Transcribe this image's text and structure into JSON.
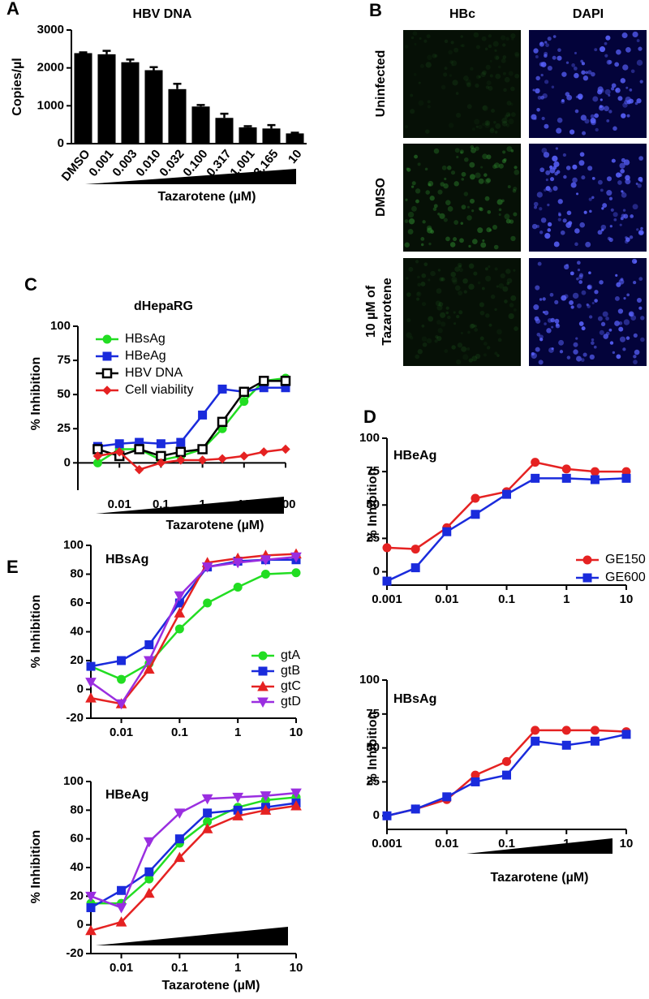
{
  "panel_b": {
    "label": "B",
    "columns": [
      "HBc",
      "DAPI"
    ],
    "rows": [
      [
        "Uninfected"
      ],
      [
        "DMSO"
      ],
      [
        "10 µM of",
        "Tazarotene"
      ]
    ]
  },
  "chart_data": [
    {
      "type": "bar",
      "panel": "A",
      "title": "HBV DNA",
      "y_label": "Copies/µl",
      "x_label": "Tazarotene (µM)",
      "categories": [
        "DMSO",
        "0.001",
        "0.003",
        "0.010",
        "0.032",
        "0.100",
        "0.317",
        "1.001",
        "3.165",
        "10"
      ],
      "values": [
        2390,
        2360,
        2150,
        1940,
        1440,
        980,
        680,
        430,
        400,
        270
      ],
      "errors": [
        20,
        90,
        70,
        80,
        140,
        40,
        110,
        30,
        90,
        20
      ],
      "color": "#000000",
      "ylim": [
        0,
        3000
      ],
      "yticks": [
        0,
        1000,
        2000,
        3000
      ]
    },
    {
      "type": "line",
      "panel": "C",
      "title": "dHepaRG",
      "y_label": "% Inhibition",
      "x_label": "Tazarotene (µM)",
      "log_x": true,
      "xaxis_crosses": 0,
      "x": [
        0.003,
        0.01,
        0.03,
        0.1,
        0.3,
        1,
        3,
        10,
        30,
        100
      ],
      "series": [
        {
          "name": "HBsAg",
          "color": "#22dd22",
          "marker": "circle",
          "values": [
            0,
            10,
            10,
            2,
            5,
            10,
            25,
            45,
            60,
            62
          ]
        },
        {
          "name": "HBeAg",
          "color": "#1a2bdc",
          "marker": "square",
          "values": [
            12,
            14,
            15,
            14,
            15,
            35,
            54,
            52,
            55,
            55
          ]
        },
        {
          "name": "HBV DNA",
          "color": "#000000",
          "marker": "open-square",
          "values": [
            10,
            5,
            10,
            5,
            8,
            10,
            30,
            52,
            60,
            60
          ]
        },
        {
          "name": "Cell viability",
          "color": "#e52222",
          "marker": "diamond",
          "values": [
            5,
            8,
            -5,
            0,
            2,
            2,
            3,
            5,
            8,
            10
          ]
        }
      ],
      "xlim": [
        0.001,
        100
      ],
      "xticks": [
        0.01,
        0.1,
        1,
        10,
        100
      ],
      "ylim": [
        -20,
        100
      ],
      "yticks": [
        0,
        25,
        50,
        75,
        100
      ]
    },
    {
      "type": "line",
      "panel": "D",
      "title": "HBeAg",
      "y_label": "% Inhibition",
      "log_x": true,
      "x": [
        0.001,
        0.003,
        0.01,
        0.03,
        0.1,
        0.3,
        1,
        3,
        10
      ],
      "series": [
        {
          "name": "GE150",
          "color": "#e52222",
          "marker": "circle",
          "values": [
            18,
            17,
            33,
            55,
            60,
            82,
            77,
            75,
            75
          ]
        },
        {
          "name": "GE600",
          "color": "#1a2bdc",
          "marker": "square",
          "values": [
            -7,
            3,
            30,
            43,
            58,
            70,
            70,
            69,
            70
          ]
        }
      ],
      "xlim": [
        0.001,
        10
      ],
      "xticks": [
        0.001,
        0.01,
        0.1,
        1,
        10
      ],
      "ylim": [
        -10,
        100
      ],
      "yticks": [
        0,
        25,
        50,
        75,
        100
      ]
    },
    {
      "type": "line",
      "title": "HBsAg",
      "y_label": "% Inhibition",
      "x_label": "Tazarotene (µM)",
      "log_x": true,
      "x": [
        0.001,
        0.003,
        0.01,
        0.03,
        0.1,
        0.3,
        1,
        3,
        10
      ],
      "series": [
        {
          "color": "#e52222",
          "marker": "circle",
          "values": [
            0,
            5,
            12,
            30,
            40,
            63,
            63,
            63,
            62
          ]
        },
        {
          "color": "#1a2bdc",
          "marker": "square",
          "values": [
            0,
            5,
            14,
            25,
            30,
            55,
            52,
            55,
            60
          ]
        }
      ],
      "xlim": [
        0.001,
        10
      ],
      "xticks": [
        0.001,
        0.01,
        0.1,
        1,
        10
      ],
      "ylim": [
        -10,
        100
      ],
      "yticks": [
        0,
        25,
        50,
        75,
        100
      ]
    },
    {
      "type": "line",
      "panel": "E",
      "title": "HBsAg",
      "y_label": "% Inhibition",
      "log_x": true,
      "x": [
        0.003,
        0.01,
        0.03,
        0.1,
        0.3,
        1,
        3,
        10
      ],
      "series": [
        {
          "name": "gtA",
          "color": "#22dd22",
          "marker": "circle",
          "values": [
            16,
            7,
            18,
            42,
            60,
            71,
            80,
            81
          ]
        },
        {
          "name": "gtB",
          "color": "#1a2bdc",
          "marker": "square",
          "values": [
            16,
            20,
            31,
            60,
            85,
            89,
            90,
            90
          ]
        },
        {
          "name": "gtC",
          "color": "#e52222",
          "marker": "triangle",
          "values": [
            -6,
            -10,
            14,
            53,
            88,
            91,
            93,
            94
          ]
        },
        {
          "name": "gtD",
          "color": "#9a2ee0",
          "marker": "triangle-down",
          "values": [
            5,
            -10,
            20,
            65,
            85,
            88,
            90,
            92
          ]
        }
      ],
      "xlim": [
        0.003,
        10
      ],
      "xticks": [
        0.01,
        0.1,
        1,
        10
      ],
      "ylim": [
        -20,
        100
      ],
      "yticks": [
        -20,
        0,
        20,
        40,
        60,
        80,
        100
      ]
    },
    {
      "type": "line",
      "title": "HBeAg",
      "y_label": "% Inhibition",
      "x_label": "Tazarotene (µM)",
      "log_x": true,
      "x": [
        0.003,
        0.01,
        0.03,
        0.1,
        0.3,
        1,
        3,
        10
      ],
      "series": [
        {
          "color": "#22dd22",
          "marker": "circle",
          "values": [
            15,
            15,
            32,
            57,
            72,
            82,
            87,
            89
          ]
        },
        {
          "color": "#1a2bdc",
          "marker": "square",
          "values": [
            12,
            24,
            37,
            60,
            78,
            80,
            82,
            85
          ]
        },
        {
          "color": "#e52222",
          "marker": "triangle",
          "values": [
            -4,
            2,
            22,
            47,
            67,
            76,
            80,
            83
          ]
        },
        {
          "color": "#9a2ee0",
          "marker": "triangle-down",
          "values": [
            20,
            12,
            58,
            78,
            88,
            89,
            90,
            92
          ]
        }
      ],
      "xlim": [
        0.003,
        10
      ],
      "xticks": [
        0.01,
        0.1,
        1,
        10
      ],
      "ylim": [
        -20,
        100
      ],
      "yticks": [
        -20,
        0,
        20,
        40,
        60,
        80,
        100
      ]
    }
  ]
}
